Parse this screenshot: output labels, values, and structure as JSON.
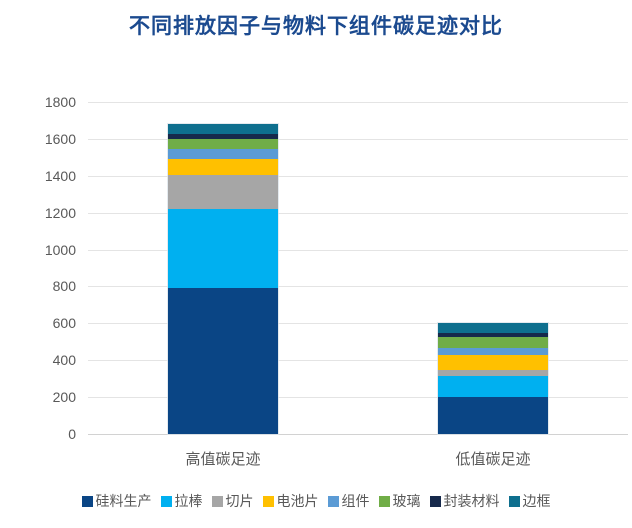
{
  "palette": {
    "title_text": "#1B4A8F",
    "axis_text": "#595959",
    "gridline": "#E4E4E4",
    "baseline": "#D2D2D2"
  },
  "chart_data": {
    "type": "bar",
    "stacked": true,
    "title": "不同排放因子与物料下组件碳足迹对比",
    "categories": [
      "高值碳足迹",
      "低值碳足迹"
    ],
    "series": [
      {
        "name": "硅料生产",
        "color": "#0A4585",
        "values": [
          790,
          200
        ]
      },
      {
        "name": "拉棒",
        "color": "#00B0F0",
        "values": [
          430,
          115
        ]
      },
      {
        "name": "切片",
        "color": "#A6A6A6",
        "values": [
          185,
          30
        ]
      },
      {
        "name": "电池片",
        "color": "#FFC000",
        "values": [
          88,
          86
        ]
      },
      {
        "name": "组件",
        "color": "#5B9BD5",
        "values": [
          52,
          37
        ]
      },
      {
        "name": "玻璃",
        "color": "#70AD47",
        "values": [
          57,
          56
        ]
      },
      {
        "name": "封装材料",
        "color": "#16294B",
        "values": [
          24,
          23
        ]
      },
      {
        "name": "边框",
        "color": "#0E6F8E",
        "values": [
          56,
          56
        ]
      }
    ],
    "totals": [
      1682,
      603
    ],
    "ylim": [
      0,
      1800
    ],
    "yticks": [
      0,
      200,
      400,
      600,
      800,
      1000,
      1200,
      1400,
      1600,
      1800
    ],
    "xlabel": "",
    "ylabel": "",
    "grid": true,
    "legend_position": "bottom"
  }
}
